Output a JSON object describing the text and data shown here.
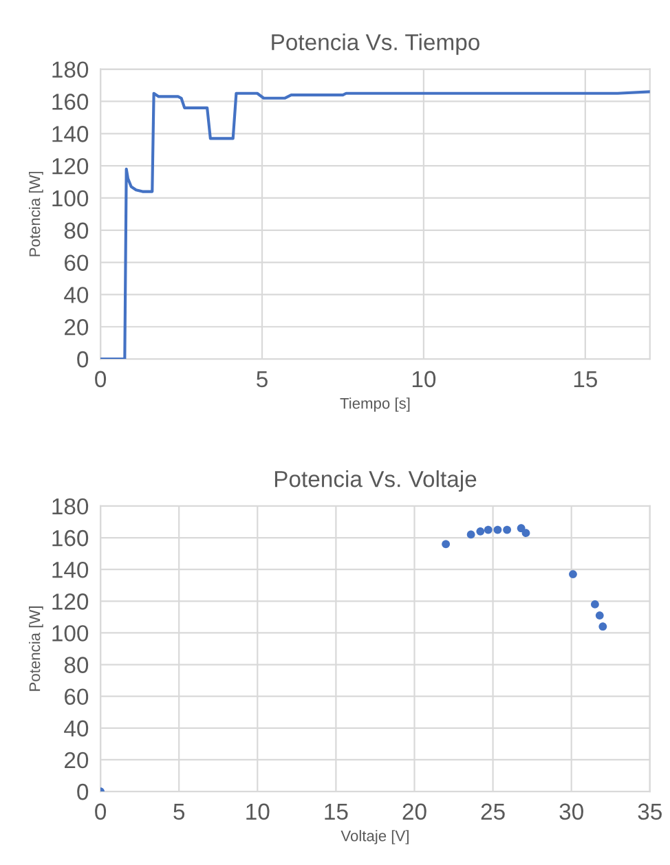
{
  "chart_data": [
    {
      "type": "line",
      "title": "Potencia Vs. Tiempo",
      "xlabel": "Tiempo [s]",
      "ylabel": "Potencia [W]",
      "xlim": [
        0,
        17
      ],
      "ylim": [
        0,
        180
      ],
      "xticks": [
        0,
        5,
        10,
        15
      ],
      "yticks": [
        0,
        20,
        40,
        60,
        80,
        100,
        120,
        140,
        160,
        180
      ],
      "grid": true,
      "marker": "none",
      "line_style": "solid",
      "series": [
        {
          "color": "#4472c4",
          "x": [
            0,
            0.75,
            0.8,
            0.85,
            0.95,
            1.1,
            1.3,
            1.6,
            1.65,
            1.8,
            2.4,
            2.5,
            2.6,
            3.3,
            3.4,
            4.1,
            4.2,
            4.85,
            5.05,
            5.7,
            5.9,
            6.9,
            7.0,
            7.5,
            7.6,
            8.5,
            10,
            11,
            12,
            13,
            14,
            15,
            16,
            17
          ],
          "values": [
            0,
            0,
            118,
            112,
            107,
            105,
            104,
            104,
            165,
            163,
            163,
            162,
            156,
            156,
            137,
            137,
            165,
            165,
            162,
            162,
            164,
            164,
            164,
            164,
            165,
            165,
            165,
            165,
            165,
            165,
            165,
            165,
            165,
            166
          ]
        }
      ]
    },
    {
      "type": "scatter",
      "title": "Potencia Vs. Voltaje",
      "xlabel": "Voltaje [V]",
      "ylabel": "Potencia [W]",
      "xlim": [
        0,
        35
      ],
      "ylim": [
        0,
        180
      ],
      "xticks": [
        0,
        5,
        10,
        15,
        20,
        25,
        30,
        35
      ],
      "yticks": [
        0,
        20,
        40,
        60,
        80,
        100,
        120,
        140,
        160,
        180
      ],
      "grid": true,
      "marker": "circle",
      "series": [
        {
          "color": "#4472c4",
          "x": [
            0,
            22,
            23.6,
            24.2,
            24.7,
            25.3,
            25.9,
            26.8,
            27.1,
            30.1,
            31.5,
            31.8,
            32.0
          ],
          "values": [
            0,
            156,
            162,
            164,
            165,
            165,
            165,
            166,
            163,
            137,
            118,
            111,
            104
          ]
        }
      ]
    }
  ]
}
